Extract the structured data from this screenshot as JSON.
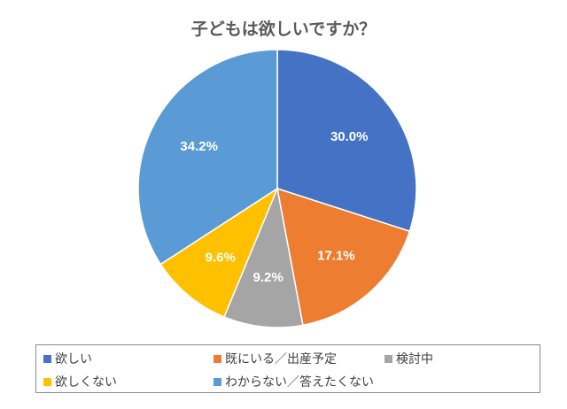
{
  "chart_data": {
    "type": "pie",
    "title": "子どもは欲しいですか？",
    "categories": [
      "欲しい",
      "既にいる／出産予定",
      "検討中",
      "欲しくない",
      "わからない／答えたくない"
    ],
    "values": [
      30.0,
      17.1,
      9.2,
      9.6,
      34.2
    ],
    "data_labels": [
      "30.0%",
      "17.1%",
      "9.2%",
      "9.6%",
      "34.2%"
    ],
    "colors": [
      "#4472C4",
      "#ED7D31",
      "#A5A5A5",
      "#FFC000",
      "#5B9BD5"
    ],
    "start_angle": "12 o'clock, clockwise",
    "legend_position": "bottom"
  }
}
